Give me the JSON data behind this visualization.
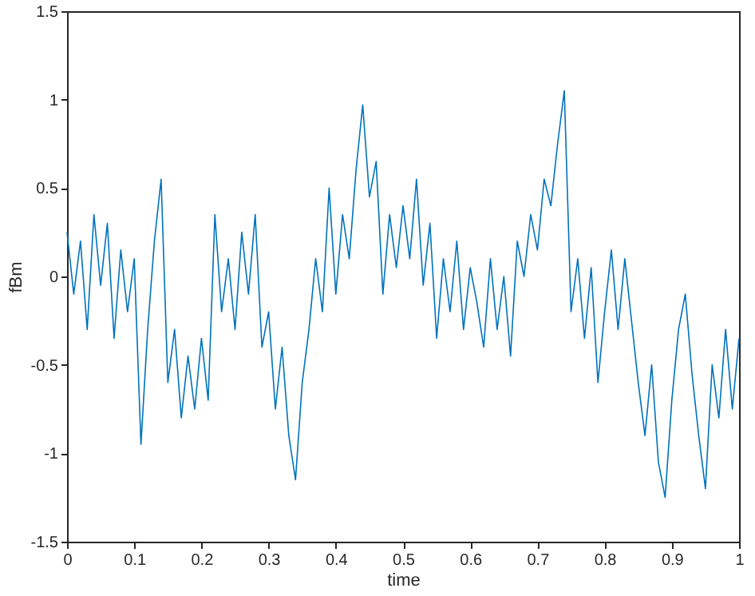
{
  "chart_data": {
    "type": "line",
    "xlabel": "time",
    "ylabel": "fBm",
    "x": [
      0,
      0.01,
      0.02,
      0.03,
      0.04,
      0.05,
      0.06,
      0.07,
      0.08,
      0.09,
      0.1,
      0.11,
      0.12,
      0.13,
      0.14,
      0.15,
      0.16,
      0.17,
      0.18,
      0.19,
      0.2,
      0.21,
      0.22,
      0.23,
      0.24,
      0.25,
      0.26,
      0.27,
      0.28,
      0.29,
      0.3,
      0.31,
      0.32,
      0.33,
      0.34,
      0.35,
      0.36,
      0.37,
      0.38,
      0.39,
      0.4,
      0.41,
      0.42,
      0.43,
      0.44,
      0.45,
      0.46,
      0.47,
      0.48,
      0.49,
      0.5,
      0.51,
      0.52,
      0.53,
      0.54,
      0.55,
      0.56,
      0.57,
      0.58,
      0.59,
      0.6,
      0.61,
      0.62,
      0.63,
      0.64,
      0.65,
      0.66,
      0.67,
      0.68,
      0.69,
      0.7,
      0.71,
      0.72,
      0.73,
      0.74,
      0.75,
      0.76,
      0.77,
      0.78,
      0.79,
      0.8,
      0.81,
      0.82,
      0.83,
      0.84,
      0.85,
      0.86,
      0.87,
      0.88,
      0.89,
      0.9,
      0.91,
      0.92,
      0.93,
      0.94,
      0.95,
      0.96,
      0.97,
      0.98,
      0.99,
      1
    ],
    "series": [
      {
        "color": "#0072bd",
        "values": [
          0.25,
          -0.1,
          0.2,
          -0.3,
          0.35,
          -0.05,
          0.3,
          -0.35,
          0.15,
          -0.2,
          0.1,
          -0.95,
          -0.3,
          0.2,
          0.55,
          -0.6,
          -0.3,
          -0.8,
          -0.45,
          -0.75,
          -0.35,
          -0.7,
          0.35,
          -0.2,
          0.1,
          -0.3,
          0.25,
          -0.1,
          0.35,
          -0.4,
          -0.2,
          -0.75,
          -0.4,
          -0.9,
          -1.15,
          -0.6,
          -0.3,
          0.1,
          -0.2,
          0.5,
          -0.1,
          0.35,
          0.1,
          0.6,
          0.97,
          0.45,
          0.65,
          -0.1,
          0.35,
          0.05,
          0.4,
          0.1,
          0.55,
          -0.05,
          0.3,
          -0.35,
          0.1,
          -0.2,
          0.2,
          -0.3,
          0.05,
          -0.15,
          -0.4,
          0.1,
          -0.3,
          0,
          -0.45,
          0.2,
          0,
          0.35,
          0.15,
          0.55,
          0.4,
          0.75,
          1.05,
          -0.2,
          0.1,
          -0.35,
          0.05,
          -0.6,
          -0.2,
          0.15,
          -0.3,
          0.1,
          -0.25,
          -0.6,
          -0.9,
          -0.5,
          -1.05,
          -1.25,
          -0.7,
          -0.3,
          -0.1,
          -0.55,
          -0.9,
          -1.2,
          -0.5,
          -0.8,
          -0.3,
          -0.75,
          -0.35
        ]
      }
    ],
    "xlim": [
      0,
      1
    ],
    "xticks": [
      0,
      0.1,
      0.2,
      0.3,
      0.4,
      0.5,
      0.6,
      0.7,
      0.8,
      0.9,
      1
    ],
    "ylim": [
      -1.5,
      1.5
    ],
    "yticks": [
      -1.5,
      -1,
      -0.5,
      0,
      0.5,
      1,
      1.5
    ],
    "grid": false,
    "marker": "none",
    "line_style": "solid"
  }
}
